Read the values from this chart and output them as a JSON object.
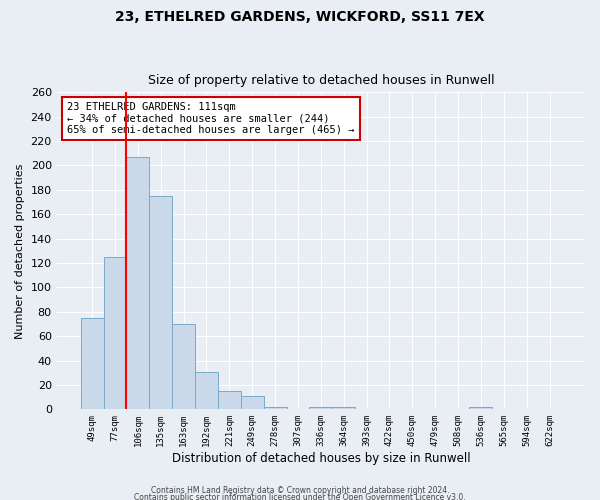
{
  "title": "23, ETHELRED GARDENS, WICKFORD, SS11 7EX",
  "subtitle": "Size of property relative to detached houses in Runwell",
  "xlabel": "Distribution of detached houses by size in Runwell",
  "ylabel": "Number of detached properties",
  "bar_color": "#c9d9ea",
  "bar_edge_color": "#7aaac8",
  "background_color": "#e8eef4",
  "plot_bg_color": "#e8eef4",
  "grid_color": "#ffffff",
  "categories": [
    "49sqm",
    "77sqm",
    "106sqm",
    "135sqm",
    "163sqm",
    "192sqm",
    "221sqm",
    "249sqm",
    "278sqm",
    "307sqm",
    "336sqm",
    "364sqm",
    "393sqm",
    "422sqm",
    "450sqm",
    "479sqm",
    "508sqm",
    "536sqm",
    "565sqm",
    "594sqm",
    "622sqm"
  ],
  "values": [
    75,
    125,
    207,
    175,
    70,
    31,
    15,
    11,
    2,
    0,
    2,
    2,
    0,
    0,
    0,
    0,
    0,
    2,
    0,
    0,
    0
  ],
  "ylim": [
    0,
    260
  ],
  "yticks": [
    0,
    20,
    40,
    60,
    80,
    100,
    120,
    140,
    160,
    180,
    200,
    220,
    240,
    260
  ],
  "redline_index": 2,
  "annotation_text": "23 ETHELRED GARDENS: 111sqm\n← 34% of detached houses are smaller (244)\n65% of semi-detached houses are larger (465) →",
  "annotation_box_color": "#ffffff",
  "annotation_box_edge_color": "#cc0000",
  "footer_line1": "Contains HM Land Registry data © Crown copyright and database right 2024.",
  "footer_line2": "Contains public sector information licensed under the Open Government Licence v3.0."
}
